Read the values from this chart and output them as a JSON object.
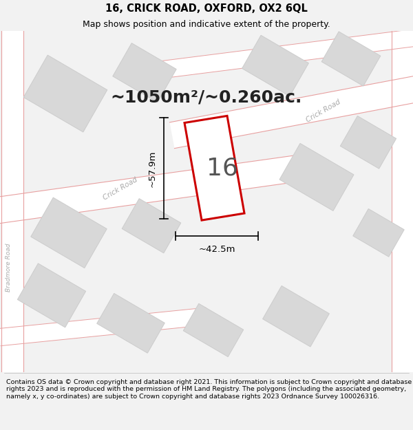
{
  "title_line1": "16, CRICK ROAD, OXFORD, OX2 6QL",
  "title_line2": "Map shows position and indicative extent of the property.",
  "area_text": "~1050m²/~0.260ac.",
  "property_number": "16",
  "dim_width": "~42.5m",
  "dim_height": "~57.9m",
  "footer_text": "Contains OS data © Crown copyright and database right 2021. This information is subject to Crown copyright and database rights 2023 and is reproduced with the permission of HM Land Registry. The polygons (including the associated geometry, namely x, y co-ordinates) are subject to Crown copyright and database rights 2023 Ordnance Survey 100026316.",
  "bg_color": "#f2f2f2",
  "map_bg": "#f0f0f0",
  "road_color": "#ffffff",
  "building_fill": "#d8d8d8",
  "building_edge": "#cccccc",
  "property_fill": "#ffffff",
  "property_edge": "#cc0000",
  "dim_line_color": "#000000",
  "area_text_color": "#222222",
  "title_color": "#000000",
  "footer_color": "#000000",
  "road_label_color": "#aaaaaa",
  "road_line_color": "#e8a0a0",
  "title_fontsize": 10.5,
  "subtitle_fontsize": 9,
  "area_fontsize": 18,
  "number_fontsize": 26,
  "footer_fontsize": 6.8
}
